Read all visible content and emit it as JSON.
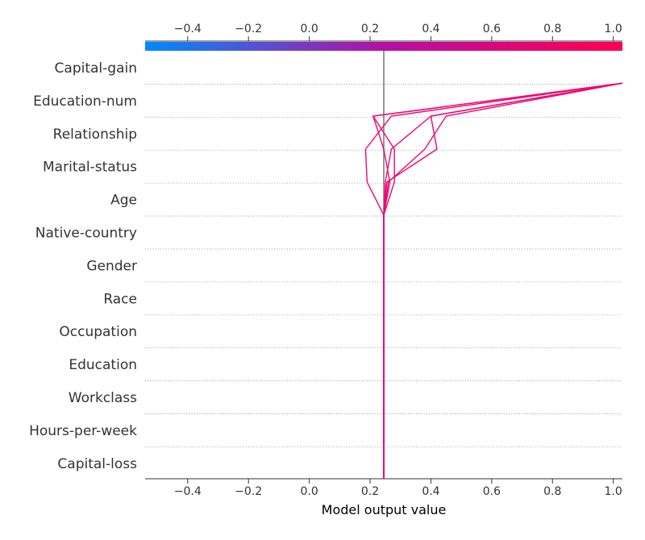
{
  "chart_data": {
    "type": "line",
    "subtype": "shap-decision-plot",
    "xlabel": "Model output value",
    "xlim": [
      -0.54,
      1.03
    ],
    "x_ticks": [
      "−0.4",
      "−0.2",
      "0.0",
      "0.2",
      "0.4",
      "0.6",
      "0.8",
      "1.0"
    ],
    "x_tick_values": [
      -0.4,
      -0.2,
      0.0,
      0.2,
      0.4,
      0.6,
      0.8,
      1.0
    ],
    "base_value": 0.245,
    "colorbar": {
      "placement": "top",
      "range": [
        -0.54,
        1.03
      ],
      "low_color": "#008bfb",
      "mid_color": "#b40fa4",
      "high_color": "#ff0052"
    },
    "gridlines": "dotted-horizontal",
    "features_top_to_bottom": [
      "Capital-gain",
      "Education-num",
      "Relationship",
      "Marital-status",
      "Age",
      "Native-country",
      "Gender",
      "Race",
      "Occupation",
      "Education",
      "Workclass",
      "Hours-per-week",
      "Capital-loss"
    ],
    "series": [
      {
        "color": "#f0066f",
        "values_bottom_to_top": [
          0.245,
          0.245,
          0.245,
          0.245,
          0.245,
          0.245,
          0.245,
          0.245,
          0.245,
          0.25,
          0.27,
          0.4,
          1.03
        ]
      },
      {
        "color": "#ef0573",
        "values_bottom_to_top": [
          0.245,
          0.245,
          0.245,
          0.245,
          0.245,
          0.245,
          0.245,
          0.245,
          0.245,
          0.19,
          0.185,
          0.27,
          1.03
        ]
      },
      {
        "color": "#ee0878",
        "values_bottom_to_top": [
          0.245,
          0.245,
          0.245,
          0.245,
          0.245,
          0.245,
          0.245,
          0.245,
          0.245,
          0.26,
          0.38,
          0.45,
          1.03
        ]
      },
      {
        "color": "#f0056e",
        "values_bottom_to_top": [
          0.245,
          0.245,
          0.245,
          0.245,
          0.245,
          0.245,
          0.245,
          0.245,
          0.245,
          0.255,
          0.42,
          0.4,
          1.03
        ]
      },
      {
        "color": "#f10470",
        "values_bottom_to_top": [
          0.245,
          0.245,
          0.245,
          0.245,
          0.245,
          0.245,
          0.245,
          0.245,
          0.245,
          0.28,
          0.28,
          0.21,
          1.03
        ]
      },
      {
        "color": "#ed0a77",
        "values_bottom_to_top": [
          0.245,
          0.245,
          0.245,
          0.245,
          0.245,
          0.245,
          0.245,
          0.245,
          0.245,
          0.265,
          0.245,
          0.21,
          1.03
        ]
      }
    ]
  }
}
